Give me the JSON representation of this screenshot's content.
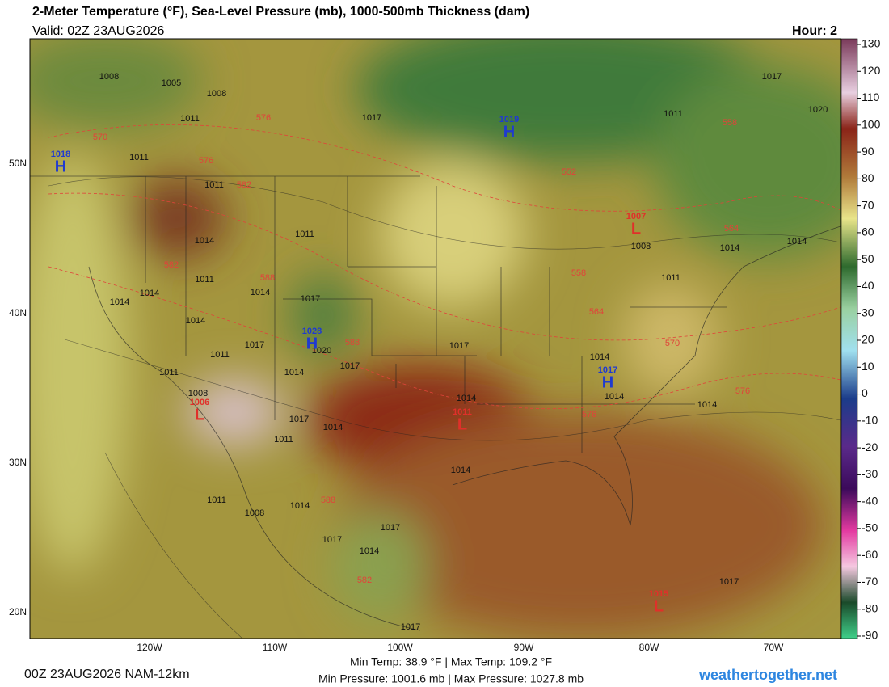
{
  "header": {
    "title": "2-Meter Temperature (°F), Sea-Level Pressure (mb), 1000-500mb Thickness (dam)",
    "valid": "Valid: 02Z 23AUG2026",
    "hour": "Hour: 2"
  },
  "map": {
    "lon_labels": [
      "120W",
      "110W",
      "100W",
      "90W",
      "80W",
      "70W"
    ],
    "lat_labels": [
      "50N",
      "40N",
      "30N",
      "20N"
    ],
    "isobar_labels": [
      1008,
      1005,
      1008,
      1011,
      1011,
      1011,
      1017,
      1017,
      1011,
      1020,
      1014,
      1011,
      1011,
      1014,
      1014,
      1014,
      1014,
      1017,
      1017,
      1011,
      1011,
      1008,
      1014,
      1017,
      1020,
      1017,
      1014,
      1014,
      1014,
      1014,
      1014,
      1017,
      1014,
      1011,
      1011,
      1008,
      1014,
      1017,
      1017,
      1014,
      1017,
      1017,
      1014,
      1014,
      1011,
      1008
    ],
    "thickness_labels": [
      576,
      570,
      576,
      582,
      582,
      588,
      588,
      552,
      558,
      564,
      558,
      564,
      570,
      576,
      576,
      588,
      582
    ],
    "centers": [
      {
        "letter": "H",
        "value": 1019
      },
      {
        "letter": "H",
        "value": 1018
      },
      {
        "letter": "H",
        "value": 1028
      },
      {
        "letter": "H",
        "value": 1017
      },
      {
        "letter": "L",
        "value": 1007
      },
      {
        "letter": "L",
        "value": 1006
      },
      {
        "letter": "L",
        "value": 1011
      },
      {
        "letter": "L",
        "value": 1015
      }
    ]
  },
  "colorbar": {
    "range": [
      -90,
      130
    ],
    "ticks": [
      130,
      120,
      110,
      100,
      90,
      80,
      70,
      60,
      50,
      40,
      30,
      20,
      10,
      0,
      -10,
      -20,
      -30,
      -40,
      -50,
      -60,
      -70,
      -80,
      -90
    ]
  },
  "footer": {
    "run": "00Z 23AUG2026 NAM-12km",
    "temp_range": "Min Temp:  38.9 °F | Max Temp: 109.2 °F",
    "pressure_range": "Min Pressure: 1001.6 mb | Max Pressure: 1027.8 mb",
    "site": "weathertogether.net"
  }
}
